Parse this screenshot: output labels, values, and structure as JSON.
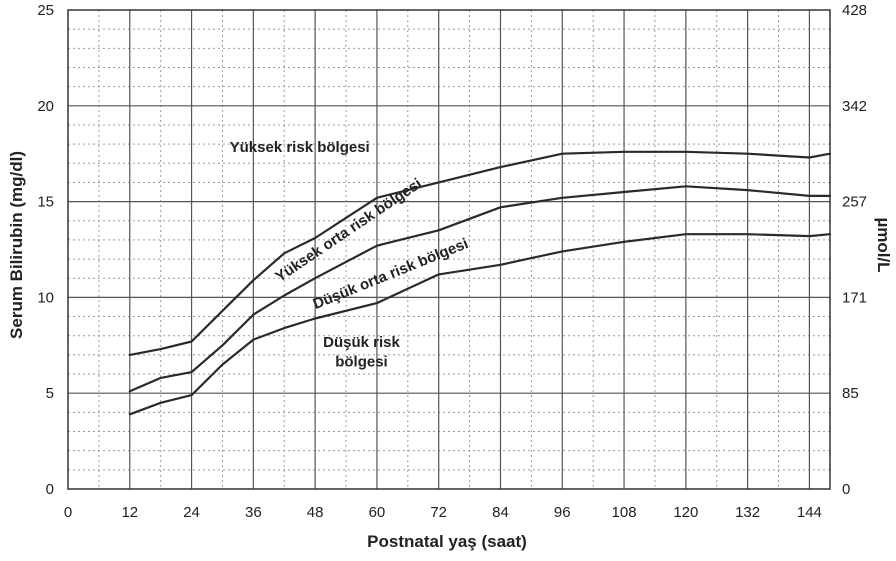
{
  "chart_data": {
    "type": "line",
    "xlabel": "Postnatal yaş (saat)",
    "ylabel": "Serum Bilirubin (mg/dl)",
    "y2label": "µmol/L",
    "xlim": [
      0,
      148
    ],
    "ylim": [
      0,
      25
    ],
    "xticks": [
      0,
      12,
      24,
      36,
      48,
      60,
      72,
      84,
      96,
      108,
      120,
      132,
      144
    ],
    "yticks": [
      0,
      5,
      10,
      15,
      20,
      25
    ],
    "y2ticks": [
      {
        "label": "0",
        "y": 0
      },
      {
        "label": "85",
        "y": 5
      },
      {
        "label": "171",
        "y": 10
      },
      {
        "label": "257",
        "y": 15
      },
      {
        "label": "342",
        "y": 20
      },
      {
        "label": "428",
        "y": 25
      }
    ],
    "grid": true,
    "series": [
      {
        "name": "",
        "x": [
          12,
          18,
          24,
          30,
          36,
          42,
          48,
          60,
          72,
          84,
          96,
          108,
          120,
          132,
          144,
          148
        ],
        "y": [
          7.0,
          7.3,
          7.7,
          9.3,
          10.9,
          12.3,
          13.1,
          15.2,
          16.0,
          16.8,
          17.5,
          17.6,
          17.6,
          17.5,
          17.3,
          17.5
        ]
      },
      {
        "name": "",
        "x": [
          12,
          18,
          24,
          30,
          36,
          42,
          48,
          60,
          72,
          84,
          96,
          108,
          120,
          132,
          144,
          148
        ],
        "y": [
          5.1,
          5.8,
          6.1,
          7.5,
          9.1,
          10.1,
          11.0,
          12.7,
          13.5,
          14.7,
          15.2,
          15.5,
          15.8,
          15.6,
          15.3,
          15.3
        ]
      },
      {
        "name": "",
        "x": [
          12,
          18,
          24,
          30,
          36,
          42,
          48,
          60,
          72,
          84,
          96,
          108,
          120,
          132,
          144,
          148
        ],
        "y": [
          3.9,
          4.5,
          4.9,
          6.5,
          7.8,
          8.4,
          8.9,
          9.7,
          11.2,
          11.7,
          12.4,
          12.9,
          13.3,
          13.3,
          13.2,
          13.3
        ]
      }
    ],
    "annotations": [
      {
        "text": "Yüksek risk bölgesi",
        "x": 45,
        "y": 17.6,
        "rotate": 0
      },
      {
        "text": "Yüksek orta risk bölgesi",
        "x": 55,
        "y": 13.3,
        "rotate": -34
      },
      {
        "text": "Düşük orta risk bölgesi",
        "x": 63,
        "y": 11.0,
        "rotate": -22
      },
      {
        "text": "Düşük risk",
        "x": 57,
        "y": 7.4,
        "rotate": 0
      },
      {
        "text": "bölgesi",
        "x": 57,
        "y": 6.4,
        "rotate": 0
      }
    ]
  }
}
